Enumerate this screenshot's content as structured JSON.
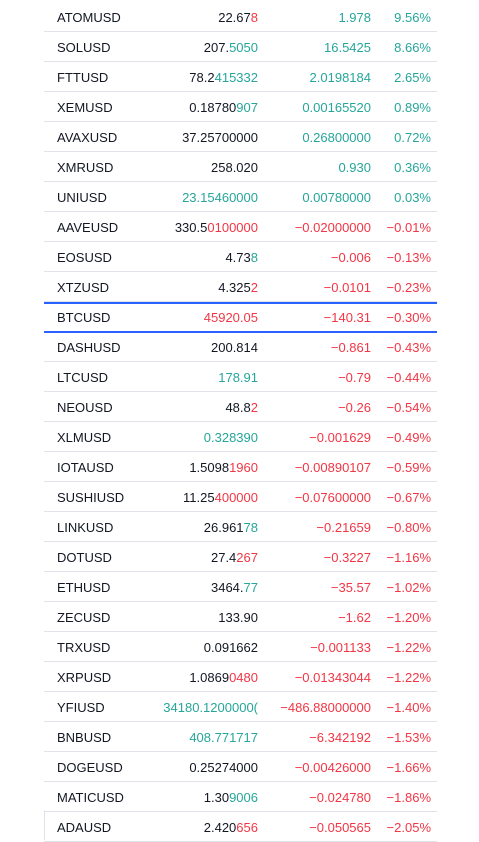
{
  "watchlist": {
    "rows": [
      {
        "symbol": "ATOMUSD",
        "last_a": "22.67",
        "last_b": "8",
        "last_b_dir": "down",
        "change": "1.978",
        "change_pct": "9.56%",
        "dir": "up"
      },
      {
        "symbol": "SOLUSD",
        "last_a": "207.",
        "last_b": "5050",
        "last_b_dir": "up",
        "change": "16.5425",
        "change_pct": "8.66%",
        "dir": "up"
      },
      {
        "symbol": "FTTUSD",
        "last_a": "78.2",
        "last_b": "415332",
        "last_b_dir": "up",
        "change": "2.0198184",
        "change_pct": "2.65%",
        "dir": "up"
      },
      {
        "symbol": "XEMUSD",
        "last_a": "0.18780",
        "last_b": "907",
        "last_b_dir": "up",
        "change": "0.00165520",
        "change_pct": "0.89%",
        "dir": "up"
      },
      {
        "symbol": "AVAXUSD",
        "last_a": "37.25700000",
        "last_b": "",
        "last_b_dir": "neutral",
        "change": "0.26800000",
        "change_pct": "0.72%",
        "dir": "up"
      },
      {
        "symbol": "XMRUSD",
        "last_a": "258.020",
        "last_b": "",
        "last_b_dir": "neutral",
        "change": "0.930",
        "change_pct": "0.36%",
        "dir": "up"
      },
      {
        "symbol": "UNIUSD",
        "last_a": "",
        "last_b": "23.15460000",
        "last_b_dir": "up",
        "change": "0.00780000",
        "change_pct": "0.03%",
        "dir": "up"
      },
      {
        "symbol": "AAVEUSD",
        "last_a": "330.5",
        "last_b": "0100000",
        "last_b_dir": "down",
        "change": "−0.02000000",
        "change_pct": "−0.01%",
        "dir": "down"
      },
      {
        "symbol": "EOSUSD",
        "last_a": "4.73",
        "last_b": "8",
        "last_b_dir": "up",
        "change": "−0.006",
        "change_pct": "−0.13%",
        "dir": "down"
      },
      {
        "symbol": "XTZUSD",
        "last_a": "4.325",
        "last_b": "2",
        "last_b_dir": "down",
        "change": "−0.0101",
        "change_pct": "−0.23%",
        "dir": "down"
      },
      {
        "symbol": "BTCUSD",
        "last_a": "",
        "last_b": "45920.05",
        "last_b_dir": "down",
        "change": "−140.31",
        "change_pct": "−0.30%",
        "dir": "down",
        "selected": true
      },
      {
        "symbol": "DASHUSD",
        "last_a": "200.814",
        "last_b": "",
        "last_b_dir": "neutral",
        "change": "−0.861",
        "change_pct": "−0.43%",
        "dir": "down"
      },
      {
        "symbol": "LTCUSD",
        "last_a": "",
        "last_b": "178.91",
        "last_b_dir": "up",
        "change": "−0.79",
        "change_pct": "−0.44%",
        "dir": "down"
      },
      {
        "symbol": "NEOUSD",
        "last_a": "48.8",
        "last_b": "2",
        "last_b_dir": "down",
        "change": "−0.26",
        "change_pct": "−0.54%",
        "dir": "down"
      },
      {
        "symbol": "XLMUSD",
        "last_a": "",
        "last_b": "0.328390",
        "last_b_dir": "up",
        "change": "−0.001629",
        "change_pct": "−0.49%",
        "dir": "down"
      },
      {
        "symbol": "IOTAUSD",
        "last_a": "1.5098",
        "last_b": "1960",
        "last_b_dir": "down",
        "change": "−0.00890107",
        "change_pct": "−0.59%",
        "dir": "down"
      },
      {
        "symbol": "SUSHIUSD",
        "last_a": "11.25",
        "last_b": "400000",
        "last_b_dir": "down",
        "change": "−0.07600000",
        "change_pct": "−0.67%",
        "dir": "down"
      },
      {
        "symbol": "LINKUSD",
        "last_a": "26.961",
        "last_b": "78",
        "last_b_dir": "up",
        "change": "−0.21659",
        "change_pct": "−0.80%",
        "dir": "down"
      },
      {
        "symbol": "DOTUSD",
        "last_a": "27.4",
        "last_b": "267",
        "last_b_dir": "down",
        "change": "−0.3227",
        "change_pct": "−1.16%",
        "dir": "down"
      },
      {
        "symbol": "ETHUSD",
        "last_a": "3464.",
        "last_b": "77",
        "last_b_dir": "up",
        "change": "−35.57",
        "change_pct": "−1.02%",
        "dir": "down"
      },
      {
        "symbol": "ZECUSD",
        "last_a": "133.90",
        "last_b": "",
        "last_b_dir": "neutral",
        "change": "−1.62",
        "change_pct": "−1.20%",
        "dir": "down"
      },
      {
        "symbol": "TRXUSD",
        "last_a": "0.091662",
        "last_b": "",
        "last_b_dir": "neutral",
        "change": "−0.001133",
        "change_pct": "−1.22%",
        "dir": "down"
      },
      {
        "symbol": "XRPUSD",
        "last_a": "1.0869",
        "last_b": "0480",
        "last_b_dir": "down",
        "change": "−0.01343044",
        "change_pct": "−1.22%",
        "dir": "down"
      },
      {
        "symbol": "YFIUSD",
        "last_a": "",
        "last_b": "34180.1200000(",
        "last_b_dir": "up",
        "change": "−486.88000000",
        "change_pct": "−1.40%",
        "dir": "down"
      },
      {
        "symbol": "BNBUSD",
        "last_a": "",
        "last_b": "408.771717",
        "last_b_dir": "up",
        "change": "−6.342192",
        "change_pct": "−1.53%",
        "dir": "down"
      },
      {
        "symbol": "DOGEUSD",
        "last_a": "0.25274000",
        "last_b": "",
        "last_b_dir": "neutral",
        "change": "−0.00426000",
        "change_pct": "−1.66%",
        "dir": "down"
      },
      {
        "symbol": "MATICUSD",
        "last_a": "1.30",
        "last_b": "9006",
        "last_b_dir": "up",
        "change": "−0.024780",
        "change_pct": "−1.86%",
        "dir": "down"
      },
      {
        "symbol": "ADAUSD",
        "last_a": "2.420",
        "last_b": "656",
        "last_b_dir": "down",
        "change": "−0.050565",
        "change_pct": "−2.05%",
        "dir": "down"
      }
    ]
  },
  "colors": {
    "up": "#26a69a",
    "down": "#f23645",
    "text": "#131722",
    "selected_border": "#2962ff",
    "row_divider": "#e0e3eb"
  }
}
